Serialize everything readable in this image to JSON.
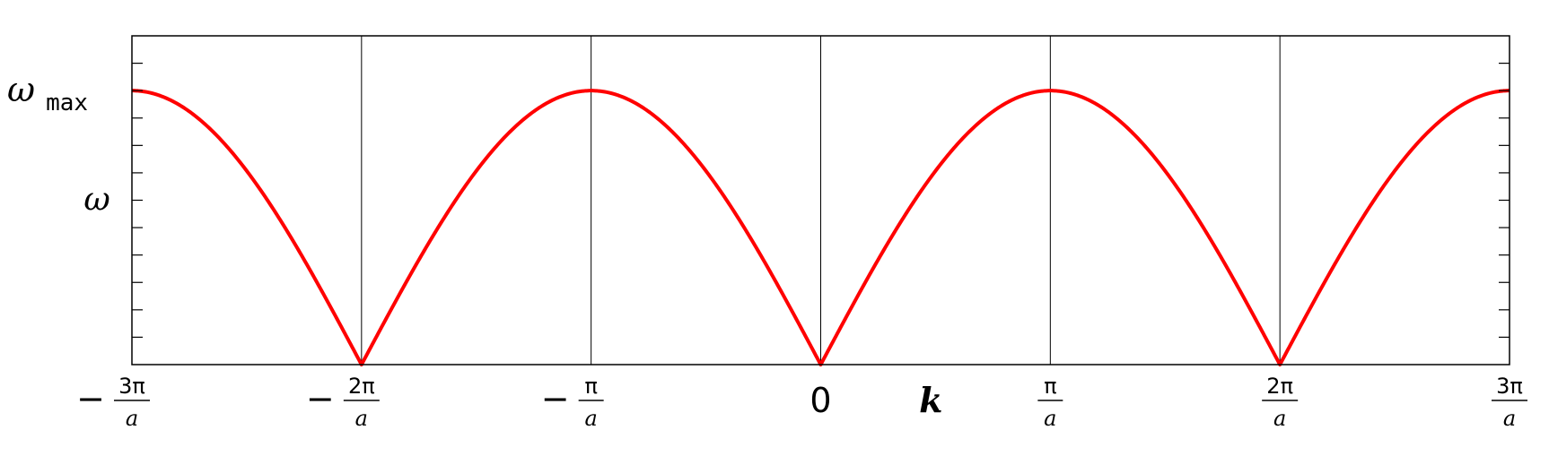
{
  "chart_data": {
    "type": "line",
    "title": "",
    "xlabel": "k",
    "ylabel": "ω",
    "xlim": [
      -3,
      3
    ],
    "xlim_units": "π/a",
    "ylim": [
      0,
      1.2
    ],
    "grid": "vertical lines at tick positions",
    "y_reference": {
      "label": "ω",
      "subscript": "max",
      "value": 1
    },
    "x_ticks": [
      {
        "value": -3,
        "sign": "−",
        "num": "3π",
        "den": "a"
      },
      {
        "value": -2,
        "sign": "−",
        "num": "2π",
        "den": "a"
      },
      {
        "value": -1,
        "sign": "−",
        "num": "π",
        "den": "a"
      },
      {
        "value": 0,
        "plain": "0"
      },
      {
        "value": 1,
        "sign": "",
        "num": "π",
        "den": "a"
      },
      {
        "value": 2,
        "sign": "",
        "num": "2π",
        "den": "a"
      },
      {
        "value": 3,
        "sign": "",
        "num": "3π",
        "den": "a"
      }
    ],
    "series": [
      {
        "function": "omega_max * |sin(k a / 2)|",
        "color": "#ff0000",
        "x": [
          -3,
          -2.75,
          -2.5,
          -2.25,
          -2,
          -1.75,
          -1.5,
          -1.25,
          -1,
          -0.75,
          -0.5,
          -0.25,
          0,
          0.25,
          0.5,
          0.75,
          1,
          1.25,
          1.5,
          1.75,
          2,
          2.25,
          2.5,
          2.75,
          3
        ],
        "y": [
          1,
          0.924,
          0.707,
          0.383,
          0,
          0.383,
          0.707,
          0.924,
          1,
          0.924,
          0.707,
          0.383,
          0,
          0.383,
          0.707,
          0.924,
          1,
          0.924,
          0.707,
          0.383,
          0,
          0.383,
          0.707,
          0.924,
          1
        ]
      }
    ]
  }
}
